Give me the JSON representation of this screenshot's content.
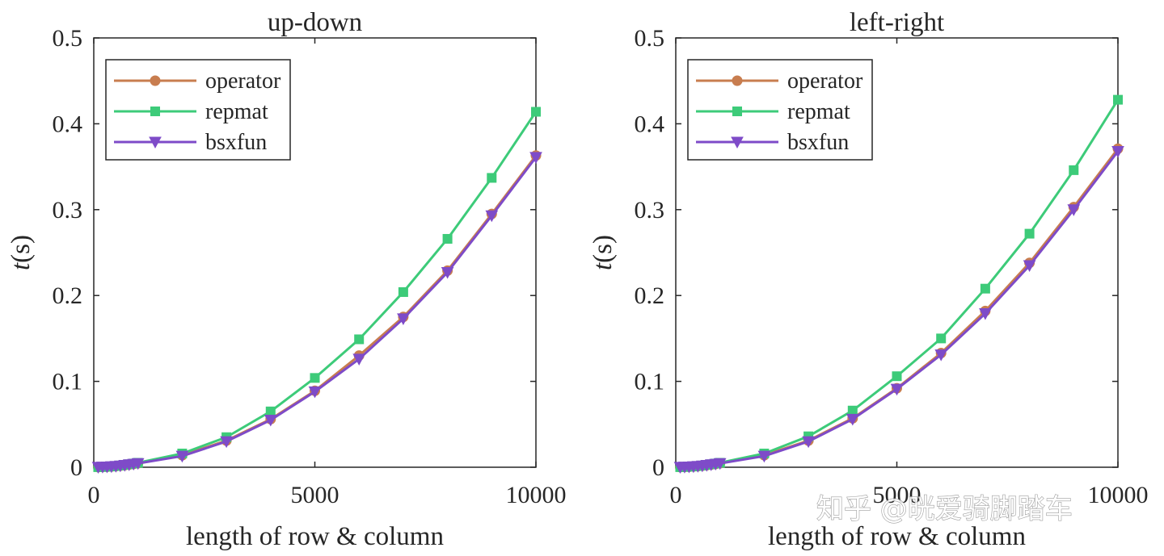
{
  "colors": {
    "operator": "#c87d4f",
    "repmat": "#3dcb79",
    "bsxfun": "#7e4bc8",
    "axis": "#262626"
  },
  "watermark": "知乎 @晄爱骑脚踏车",
  "chart_data": [
    {
      "type": "line",
      "title": "up-down",
      "xlabel": "length of row & column",
      "ylabel_italic": "t",
      "ylabel_rest": "(s)",
      "xlim": [
        0,
        10000
      ],
      "ylim": [
        0,
        0.5
      ],
      "xticks": [
        0,
        5000,
        10000
      ],
      "xtick_labels": [
        "0",
        "5000",
        "10000"
      ],
      "yticks": [
        0,
        0.1,
        0.2,
        0.3,
        0.4,
        0.5
      ],
      "ytick_labels": [
        "0",
        "0.1",
        "0.2",
        "0.3",
        "0.4",
        "0.5"
      ],
      "grid": false,
      "legend_position": "top-left",
      "x": [
        100,
        200,
        300,
        400,
        500,
        600,
        700,
        800,
        900,
        1000,
        2000,
        3000,
        4000,
        5000,
        6000,
        7000,
        8000,
        9000,
        10000
      ],
      "series": [
        {
          "name": "operator",
          "marker": "circle",
          "values": [
            0.0001,
            0.0003,
            0.0005,
            0.0008,
            0.0012,
            0.0017,
            0.0023,
            0.003,
            0.0037,
            0.0045,
            0.014,
            0.031,
            0.056,
            0.089,
            0.13,
            0.175,
            0.229,
            0.295,
            0.363
          ]
        },
        {
          "name": "repmat",
          "marker": "square",
          "values": [
            0.0001,
            0.0003,
            0.0006,
            0.0009,
            0.0014,
            0.002,
            0.0027,
            0.0035,
            0.0043,
            0.0052,
            0.016,
            0.035,
            0.065,
            0.104,
            0.149,
            0.204,
            0.266,
            0.337,
            0.414
          ]
        },
        {
          "name": "bsxfun",
          "marker": "triangle-down",
          "values": [
            0.0001,
            0.0003,
            0.0005,
            0.0008,
            0.0012,
            0.0017,
            0.0023,
            0.003,
            0.0037,
            0.0045,
            0.013,
            0.03,
            0.055,
            0.088,
            0.126,
            0.173,
            0.227,
            0.293,
            0.361
          ]
        }
      ]
    },
    {
      "type": "line",
      "title": "left-right",
      "xlabel": "length of row & column",
      "ylabel_italic": "t",
      "ylabel_rest": "(s)",
      "xlim": [
        0,
        10000
      ],
      "ylim": [
        0,
        0.5
      ],
      "xticks": [
        0,
        5000,
        10000
      ],
      "xtick_labels": [
        "0",
        "5000",
        "10000"
      ],
      "yticks": [
        0,
        0.1,
        0.2,
        0.3,
        0.4,
        0.5
      ],
      "ytick_labels": [
        "0",
        "0.1",
        "0.2",
        "0.3",
        "0.4",
        "0.5"
      ],
      "grid": false,
      "legend_position": "top-left",
      "x": [
        100,
        200,
        300,
        400,
        500,
        600,
        700,
        800,
        900,
        1000,
        2000,
        3000,
        4000,
        5000,
        6000,
        7000,
        8000,
        9000,
        10000
      ],
      "series": [
        {
          "name": "operator",
          "marker": "circle",
          "values": [
            0.0001,
            0.0003,
            0.0005,
            0.0008,
            0.0012,
            0.0017,
            0.0023,
            0.003,
            0.0037,
            0.0045,
            0.014,
            0.031,
            0.057,
            0.092,
            0.133,
            0.182,
            0.238,
            0.303,
            0.371
          ]
        },
        {
          "name": "repmat",
          "marker": "square",
          "values": [
            0.0001,
            0.0003,
            0.0006,
            0.0009,
            0.0014,
            0.002,
            0.0027,
            0.0035,
            0.0043,
            0.0052,
            0.016,
            0.036,
            0.066,
            0.106,
            0.15,
            0.208,
            0.272,
            0.346,
            0.428
          ]
        },
        {
          "name": "bsxfun",
          "marker": "triangle-down",
          "values": [
            0.0001,
            0.0003,
            0.0005,
            0.0008,
            0.0012,
            0.0017,
            0.0023,
            0.003,
            0.0037,
            0.0045,
            0.013,
            0.03,
            0.056,
            0.091,
            0.131,
            0.179,
            0.235,
            0.3,
            0.368
          ]
        }
      ]
    }
  ]
}
